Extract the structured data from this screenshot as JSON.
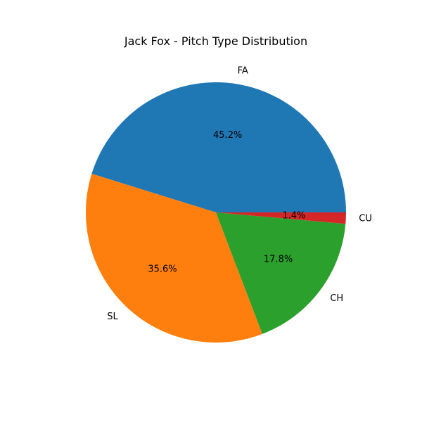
{
  "chart_data": {
    "type": "pie",
    "title": "Jack Fox - Pitch Type Distribution",
    "categories": [
      "FA",
      "SL",
      "CH",
      "CU"
    ],
    "values": [
      45.2,
      35.6,
      17.8,
      1.4
    ],
    "percent_labels": [
      "45.2%",
      "35.6%",
      "17.8%",
      "1.4%"
    ],
    "colors": [
      "#1f77b4",
      "#ff7f0e",
      "#2ca02c",
      "#d62728"
    ],
    "start_angle": 0,
    "direction": "counterclockwise",
    "legend": "none"
  }
}
